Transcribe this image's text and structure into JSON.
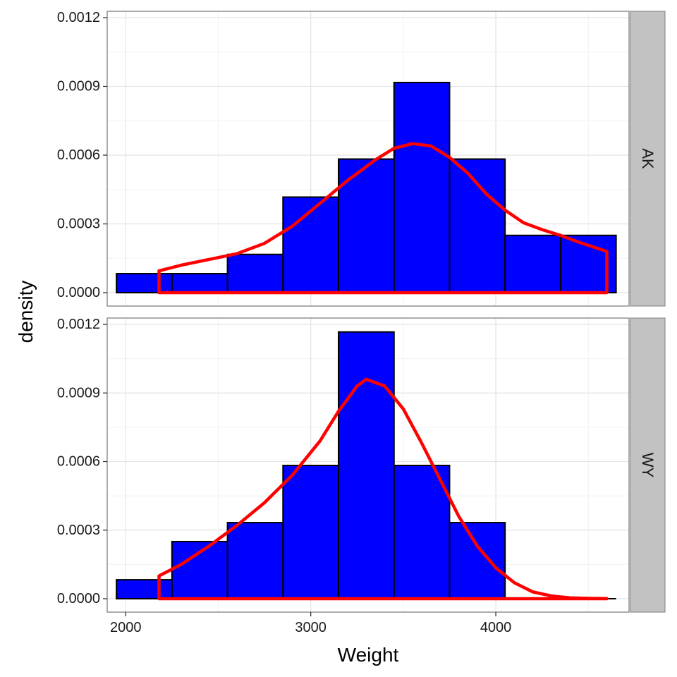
{
  "chart_data": {
    "type": "bar",
    "xlabel": "Weight",
    "ylabel": "density",
    "xlim": [
      1900,
      4720
    ],
    "ylim": [
      0,
      0.0012
    ],
    "x_ticks": [
      2000,
      3000,
      4000
    ],
    "y_ticks": [
      "0.0000",
      "0.0003",
      "0.0006",
      "0.0009",
      "0.0012"
    ],
    "bin_edges": [
      1950,
      2250,
      2550,
      2850,
      3150,
      3450,
      3750,
      4050,
      4350,
      4650
    ],
    "grid": true,
    "bar_fill": "#0000ff",
    "bar_stroke": "#000000",
    "density_color": "#ff0000",
    "panels": [
      {
        "facet": "AK",
        "histogram": [
          8.3e-05,
          8.3e-05,
          0.000167,
          0.000417,
          0.000583,
          0.000917,
          0.000583,
          0.00025,
          0.00025
        ],
        "density": {
          "x": [
            2180,
            2300,
            2450,
            2600,
            2750,
            2900,
            3050,
            3200,
            3350,
            3450,
            3550,
            3650,
            3750,
            3850,
            3950,
            4050,
            4150,
            4250,
            4350,
            4450,
            4600
          ],
          "y": [
            9.5e-05,
            0.00012,
            0.000145,
            0.00017,
            0.000215,
            0.00029,
            0.00039,
            0.00049,
            0.00058,
            0.00063,
            0.00065,
            0.00064,
            0.00059,
            0.00052,
            0.00043,
            0.00036,
            0.000305,
            0.000275,
            0.00025,
            0.00022,
            0.00018
          ]
        }
      },
      {
        "facet": "WY",
        "histogram": [
          8.3e-05,
          0.00025,
          0.000333,
          0.000583,
          0.001167,
          0.000583,
          0.000333,
          0,
          0
        ],
        "density": {
          "x": [
            2180,
            2300,
            2450,
            2600,
            2750,
            2900,
            3050,
            3150,
            3250,
            3300,
            3400,
            3500,
            3600,
            3700,
            3800,
            3900,
            4000,
            4100,
            4200,
            4300,
            4400,
            4500,
            4600
          ],
          "y": [
            0.0001,
            0.00015,
            0.00023,
            0.00032,
            0.00042,
            0.00054,
            0.00069,
            0.00082,
            0.00093,
            0.00096,
            0.00093,
            0.00083,
            0.00068,
            0.00052,
            0.00036,
            0.00023,
            0.000135,
            7e-05,
            3e-05,
            1.2e-05,
            4e-06,
            1.5e-06,
            5e-07
          ]
        }
      }
    ]
  }
}
